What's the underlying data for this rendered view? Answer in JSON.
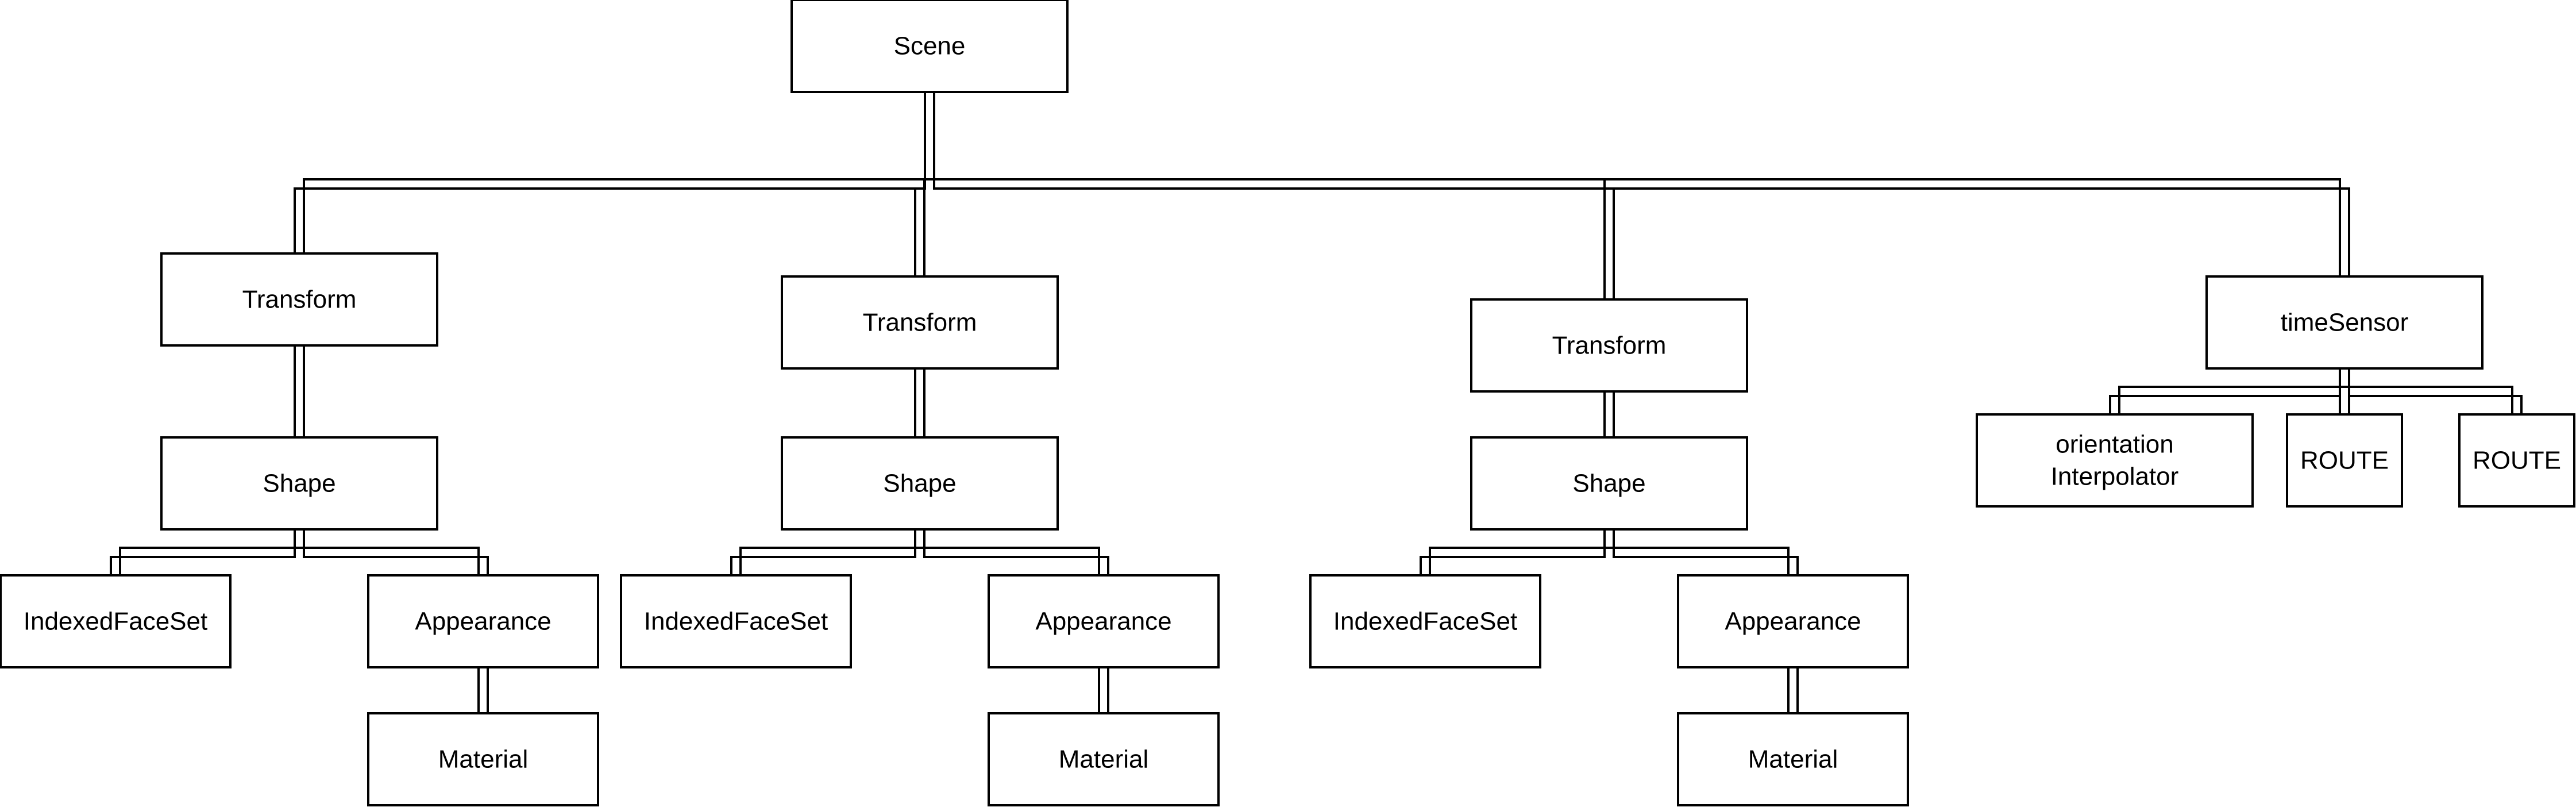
{
  "nodes": {
    "scene": [
      "Scene"
    ],
    "transform_1": [
      "Transform"
    ],
    "transform_2": [
      "Transform"
    ],
    "transform_3": [
      "Transform"
    ],
    "time_sensor": [
      "timeSensor"
    ],
    "shape_1": [
      "Shape"
    ],
    "shape_2": [
      "Shape"
    ],
    "shape_3": [
      "Shape"
    ],
    "orientation_interpolator": [
      "orientation",
      "Interpolator"
    ],
    "route_1": [
      "ROUTE"
    ],
    "route_2": [
      "ROUTE"
    ],
    "indexed_face_set_1": [
      "IndexedFaceSet"
    ],
    "indexed_face_set_2": [
      "IndexedFaceSet"
    ],
    "indexed_face_set_3": [
      "IndexedFaceSet"
    ],
    "appearance_1": [
      "Appearance"
    ],
    "appearance_2": [
      "Appearance"
    ],
    "appearance_3": [
      "Appearance"
    ],
    "material_1": [
      "Material"
    ],
    "material_2": [
      "Material"
    ],
    "material_3": [
      "Material"
    ]
  },
  "edges": [
    [
      "scene",
      "transform_1"
    ],
    [
      "scene",
      "transform_2"
    ],
    [
      "scene",
      "transform_3"
    ],
    [
      "scene",
      "time_sensor"
    ],
    [
      "transform_1",
      "shape_1"
    ],
    [
      "transform_2",
      "shape_2"
    ],
    [
      "transform_3",
      "shape_3"
    ],
    [
      "shape_1",
      "indexed_face_set_1"
    ],
    [
      "shape_1",
      "appearance_1"
    ],
    [
      "shape_2",
      "indexed_face_set_2"
    ],
    [
      "shape_2",
      "appearance_2"
    ],
    [
      "shape_3",
      "indexed_face_set_3"
    ],
    [
      "shape_3",
      "appearance_3"
    ],
    [
      "appearance_1",
      "material_1"
    ],
    [
      "appearance_2",
      "material_2"
    ],
    [
      "appearance_3",
      "material_3"
    ],
    [
      "time_sensor",
      "orientation_interpolator"
    ],
    [
      "time_sensor",
      "route_1"
    ],
    [
      "time_sensor",
      "route_2"
    ]
  ]
}
